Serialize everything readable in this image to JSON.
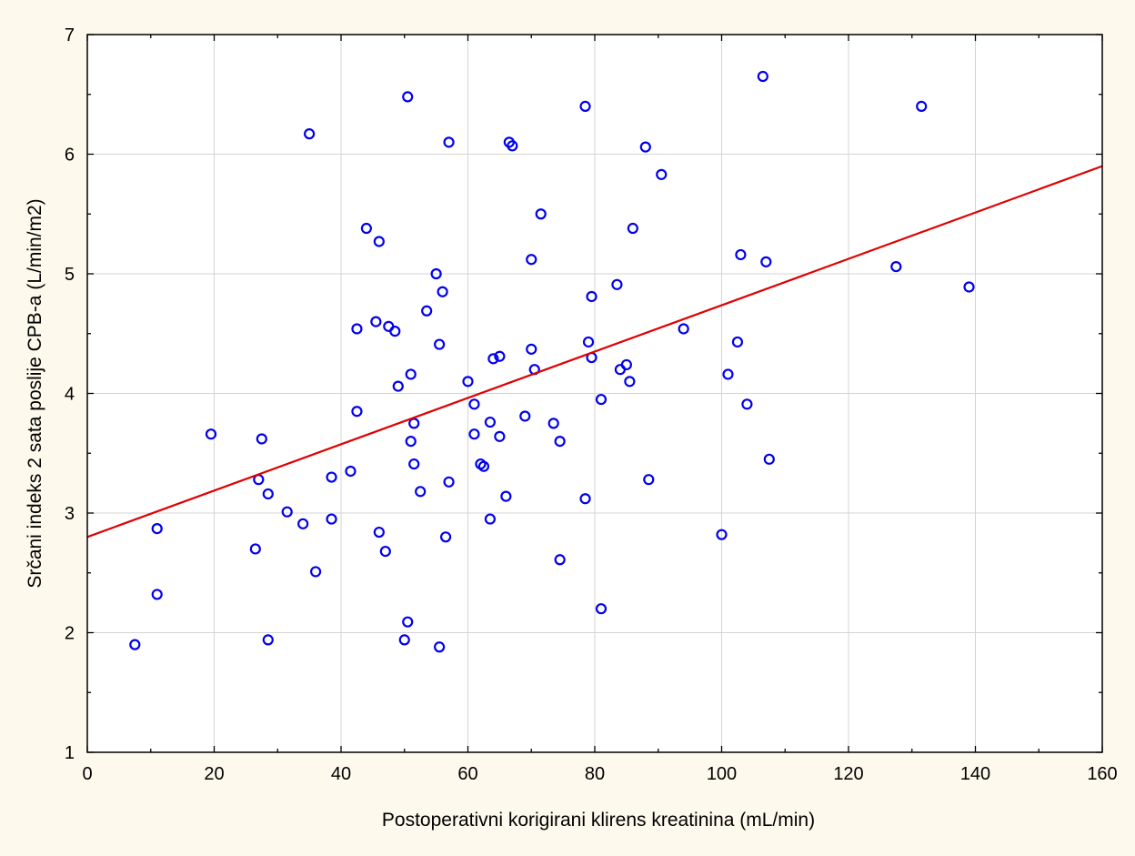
{
  "chart_data": {
    "type": "scatter",
    "title": "",
    "xlabel": "Postoperativni korigirani klirens kreatinina (mL/min)",
    "ylabel": "Srčani indeks 2 sata poslije CPB-a (L/min/m2)",
    "xlim": [
      0,
      160
    ],
    "ylim": [
      1,
      7
    ],
    "x_ticks": [
      0,
      20,
      40,
      60,
      80,
      100,
      120,
      140,
      160
    ],
    "y_ticks": [
      1,
      2,
      3,
      4,
      5,
      6,
      7
    ],
    "grid": true,
    "legend": "none",
    "marker": "circle",
    "point_color": "#0000ee",
    "line_color": "#e00000",
    "plot_background": "#ffffff",
    "series": [
      {
        "points": [
          [
            7.5,
            1.9
          ],
          [
            11,
            2.87
          ],
          [
            11,
            2.32
          ],
          [
            19.5,
            3.66
          ],
          [
            26.5,
            2.7
          ],
          [
            27,
            3.28
          ],
          [
            27.5,
            3.62
          ],
          [
            28.5,
            3.16
          ],
          [
            28.5,
            1.94
          ],
          [
            31.5,
            3.01
          ],
          [
            34,
            2.91
          ],
          [
            35,
            6.17
          ],
          [
            36,
            2.51
          ],
          [
            38.5,
            3.3
          ],
          [
            38.5,
            2.95
          ],
          [
            41.5,
            3.35
          ],
          [
            42.5,
            4.54
          ],
          [
            42.5,
            3.85
          ],
          [
            44,
            5.38
          ],
          [
            45.5,
            4.6
          ],
          [
            46,
            5.27
          ],
          [
            46,
            2.84
          ],
          [
            47,
            2.68
          ],
          [
            47.5,
            4.56
          ],
          [
            48.5,
            4.52
          ],
          [
            49,
            4.06
          ],
          [
            50,
            1.94
          ],
          [
            50.5,
            2.09
          ],
          [
            50.5,
            6.48
          ],
          [
            51,
            4.16
          ],
          [
            51,
            3.6
          ],
          [
            51.5,
            3.75
          ],
          [
            51.5,
            3.41
          ],
          [
            52.5,
            3.18
          ],
          [
            53.5,
            4.69
          ],
          [
            55,
            5.0
          ],
          [
            55.5,
            4.41
          ],
          [
            55.5,
            1.88
          ],
          [
            56,
            4.85
          ],
          [
            56.5,
            2.8
          ],
          [
            57,
            6.1
          ],
          [
            57,
            3.26
          ],
          [
            60,
            4.1
          ],
          [
            61,
            3.91
          ],
          [
            61,
            3.66
          ],
          [
            62,
            3.41
          ],
          [
            62.5,
            3.39
          ],
          [
            63.5,
            3.76
          ],
          [
            63.5,
            2.95
          ],
          [
            64,
            4.29
          ],
          [
            65,
            4.31
          ],
          [
            65,
            3.64
          ],
          [
            66,
            3.14
          ],
          [
            66.5,
            6.1
          ],
          [
            67,
            6.07
          ],
          [
            69,
            3.81
          ],
          [
            70,
            5.12
          ],
          [
            70,
            4.37
          ],
          [
            70.5,
            4.2
          ],
          [
            71.5,
            5.5
          ],
          [
            73.5,
            3.75
          ],
          [
            74.5,
            3.6
          ],
          [
            74.5,
            2.61
          ],
          [
            78.5,
            6.4
          ],
          [
            78.5,
            3.12
          ],
          [
            79,
            4.43
          ],
          [
            79.5,
            4.81
          ],
          [
            79.5,
            4.3
          ],
          [
            81,
            2.2
          ],
          [
            81,
            3.95
          ],
          [
            83.5,
            4.91
          ],
          [
            84,
            4.2
          ],
          [
            85,
            4.24
          ],
          [
            85.5,
            4.1
          ],
          [
            86,
            5.38
          ],
          [
            88,
            6.06
          ],
          [
            88.5,
            3.28
          ],
          [
            90.5,
            5.83
          ],
          [
            94,
            4.54
          ],
          [
            100,
            2.82
          ],
          [
            101,
            4.16
          ],
          [
            102.5,
            4.43
          ],
          [
            103,
            5.16
          ],
          [
            104,
            3.91
          ],
          [
            106.5,
            6.65
          ],
          [
            107,
            5.1
          ],
          [
            107.5,
            3.45
          ],
          [
            127.5,
            5.06
          ],
          [
            131.5,
            6.4
          ],
          [
            139,
            4.89
          ]
        ]
      }
    ],
    "regression": {
      "x": [
        0,
        160
      ],
      "y": [
        2.8,
        5.9
      ]
    }
  }
}
